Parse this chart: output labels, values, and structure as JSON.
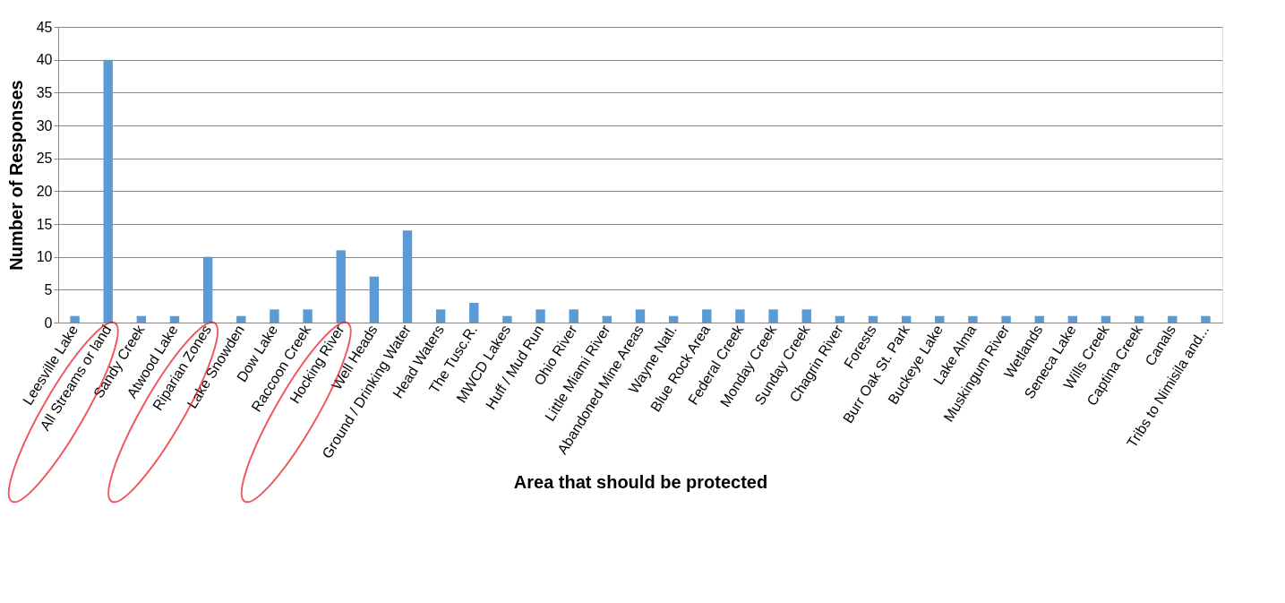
{
  "chart_data": {
    "type": "bar",
    "xlabel": "Area that should be protected",
    "ylabel": "Number of Responses",
    "categories": [
      "Leesville Lake",
      "All Streams or land",
      "Sandy Creek",
      "Atwood Lake",
      "Riparian Zones",
      "Lake Snowden",
      "Dow Lake",
      "Raccoon Creek",
      "Hocking River",
      "Well Heads",
      "Ground / Drinking Water",
      "Head Waters",
      "The Tusc.R.",
      "MWCD Lakes",
      "Huff / Mud Run",
      "Ohio River",
      "Little Miami River",
      "Abandoned Mine Areas",
      "Wayne Natl.",
      "Blue Rock Area",
      "Federal Creek",
      "Monday Creek",
      "Sunday Creek",
      "Chagrin River",
      "Forests",
      "Burr Oak St. Park",
      "Buckeye Lake",
      "Lake Alma",
      "Muskingum River",
      "Wetlands",
      "Seneca Lake",
      "Wills Creek",
      "Captina Creek",
      "Canals",
      "Tribs to Nimisila and..."
    ],
    "values": [
      1,
      40,
      1,
      1,
      10,
      1,
      2,
      2,
      11,
      7,
      14,
      2,
      3,
      1,
      2,
      2,
      1,
      2,
      1,
      2,
      2,
      2,
      2,
      1,
      1,
      1,
      1,
      1,
      1,
      1,
      1,
      1,
      1,
      1,
      1
    ],
    "color": "#5b9bd5",
    "ylim": [
      0,
      45
    ],
    "yticks": [
      0,
      5,
      10,
      15,
      20,
      25,
      30,
      35,
      40,
      45
    ],
    "grid": "y"
  }
}
